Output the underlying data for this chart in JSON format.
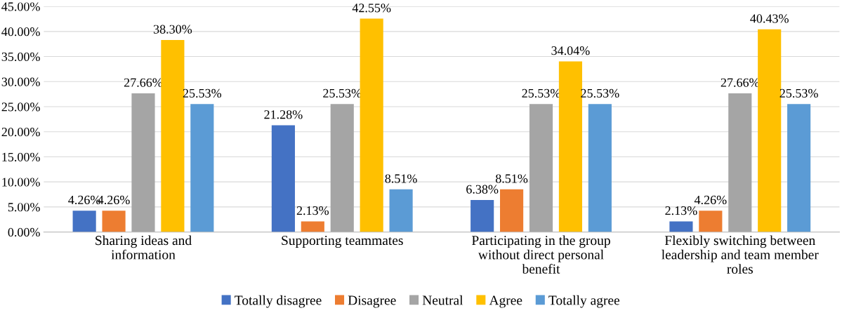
{
  "chart_data": {
    "type": "bar",
    "categories": [
      "Sharing ideas and information",
      "Supporting teammates",
      "Participating in the group without direct personal benefit",
      "Flexibly switching between leadership and team member roles"
    ],
    "series": [
      {
        "name": "Totally disagree",
        "color": "#4472c4",
        "values": [
          4.26,
          21.28,
          6.38,
          2.13
        ],
        "value_labels": [
          "4.26%",
          "21.28%",
          "6.38%",
          "2.13%"
        ]
      },
      {
        "name": "Disagree",
        "color": "#ed7d31",
        "values": [
          4.26,
          2.13,
          8.51,
          4.26
        ],
        "value_labels": [
          "4.26%",
          "2.13%",
          "8.51%",
          "4.26%"
        ]
      },
      {
        "name": "Neutral",
        "color": "#a5a5a5",
        "values": [
          27.66,
          25.53,
          25.53,
          27.66
        ],
        "value_labels": [
          "27.66%",
          "25.53%",
          "25.53%",
          "27.66%"
        ]
      },
      {
        "name": "Agree",
        "color": "#ffc000",
        "values": [
          38.3,
          42.55,
          34.04,
          40.43
        ],
        "value_labels": [
          "38.30%",
          "42.55%",
          "34.04%",
          "40.43%"
        ]
      },
      {
        "name": "Totally agree",
        "color": "#5b9bd5",
        "values": [
          25.53,
          8.51,
          25.53,
          25.53
        ],
        "value_labels": [
          "25.53%",
          "8.51%",
          "25.53%",
          "25.53%"
        ]
      }
    ],
    "ylim": [
      0,
      45
    ],
    "yticks": [
      {
        "value": 0,
        "label": "0.00%"
      },
      {
        "value": 5,
        "label": "5.00%"
      },
      {
        "value": 10,
        "label": "10.00%"
      },
      {
        "value": 15,
        "label": "15.00%"
      },
      {
        "value": 20,
        "label": "20.00%"
      },
      {
        "value": 25,
        "label": "25.00%"
      },
      {
        "value": 30,
        "label": "30.00%"
      },
      {
        "value": 35,
        "label": "35.00%"
      },
      {
        "value": 40,
        "label": "40.00%"
      },
      {
        "value": 45,
        "label": "45.00%"
      }
    ],
    "grid": "y",
    "legend": "bottom"
  }
}
